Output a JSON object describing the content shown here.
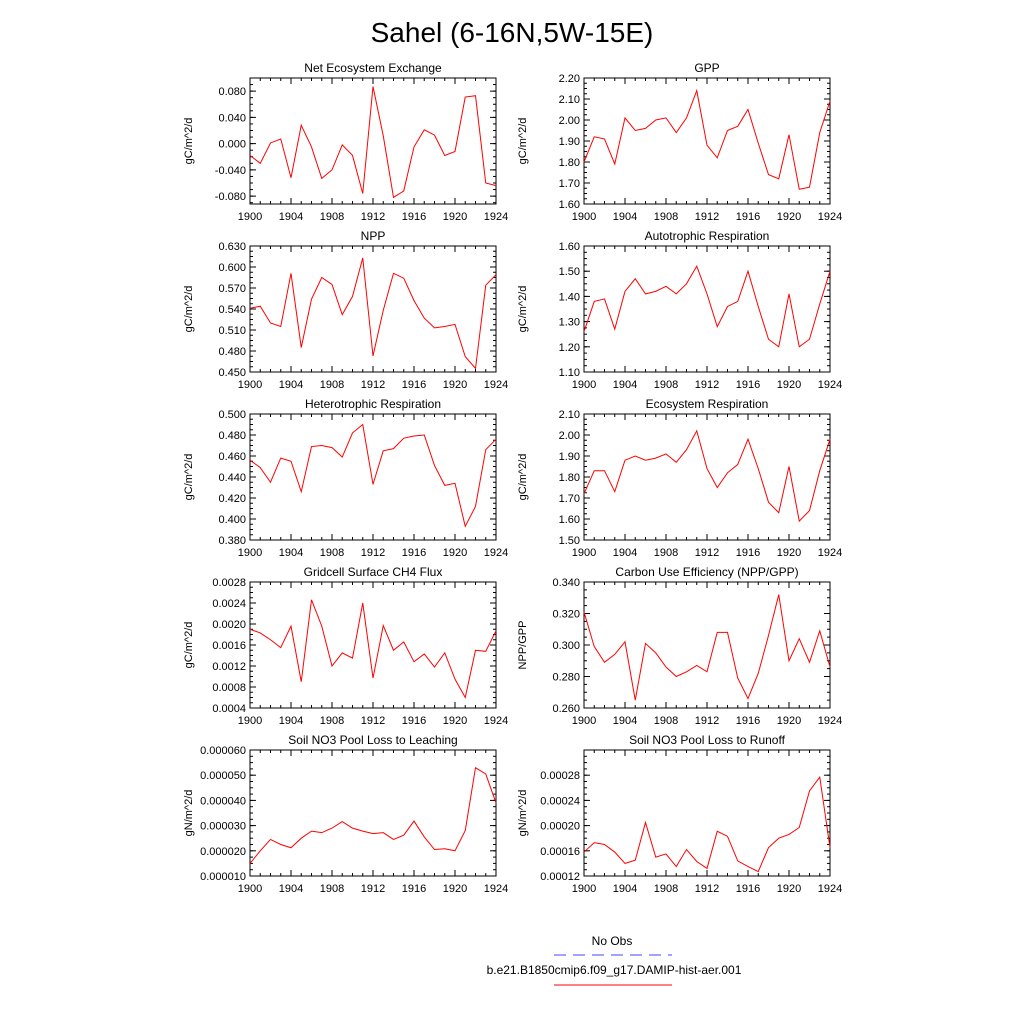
{
  "page_title": "Sahel (6-16N,5W-15E)",
  "chart_data": [
    {
      "type": "line",
      "title": "Net Ecosystem Exchange",
      "ylabel": "gC/m^2/d",
      "xlim": [
        1900,
        1924
      ],
      "ylim": [
        -0.092,
        0.1
      ],
      "xticks": [
        "1900",
        "1904",
        "1908",
        "1912",
        "1916",
        "1920",
        "1924"
      ],
      "yticks": [
        "-0.080",
        "-0.040",
        "0.000",
        "0.040",
        "0.080"
      ],
      "series": [
        {
          "color": "#ff0000",
          "x": [
            1900,
            1901,
            1902,
            1903,
            1904,
            1905,
            1906,
            1907,
            1908,
            1909,
            1910,
            1911,
            1912,
            1913,
            1914,
            1915,
            1916,
            1917,
            1918,
            1919,
            1920,
            1921,
            1922,
            1923,
            1924
          ],
          "values": [
            -0.018,
            -0.03,
            0.001,
            0.007,
            -0.052,
            0.028,
            -0.005,
            -0.053,
            -0.04,
            -0.002,
            -0.018,
            -0.076,
            0.087,
            0.012,
            -0.082,
            -0.072,
            -0.005,
            0.021,
            0.013,
            -0.018,
            -0.012,
            0.071,
            0.073,
            -0.06,
            -0.064
          ]
        }
      ]
    },
    {
      "type": "line",
      "title": "GPP",
      "ylabel": "gC/m^2/d",
      "xlim": [
        1900,
        1924
      ],
      "ylim": [
        1.6,
        2.2
      ],
      "xticks": [
        "1900",
        "1904",
        "1908",
        "1912",
        "1916",
        "1920",
        "1924"
      ],
      "yticks": [
        "1.60",
        "1.70",
        "1.80",
        "1.90",
        "2.00",
        "2.10",
        "2.20"
      ],
      "series": [
        {
          "color": "#ff0000",
          "x": [
            1900,
            1901,
            1902,
            1903,
            1904,
            1905,
            1906,
            1907,
            1908,
            1909,
            1910,
            1911,
            1912,
            1913,
            1914,
            1915,
            1916,
            1917,
            1918,
            1919,
            1920,
            1921,
            1922,
            1923,
            1924
          ],
          "values": [
            1.8,
            1.92,
            1.91,
            1.79,
            2.01,
            1.95,
            1.96,
            2.0,
            2.01,
            1.94,
            2.01,
            2.14,
            1.88,
            1.82,
            1.95,
            1.97,
            2.05,
            1.89,
            1.74,
            1.72,
            1.93,
            1.67,
            1.68,
            1.94,
            2.09
          ]
        }
      ]
    },
    {
      "type": "line",
      "title": "NPP",
      "ylabel": "gC/m^2/d",
      "xlim": [
        1900,
        1924
      ],
      "ylim": [
        0.45,
        0.63
      ],
      "xticks": [
        "1900",
        "1904",
        "1908",
        "1912",
        "1916",
        "1920",
        "1924"
      ],
      "yticks": [
        "0.450",
        "0.480",
        "0.510",
        "0.540",
        "0.570",
        "0.600",
        "0.630"
      ],
      "series": [
        {
          "color": "#ff0000",
          "x": [
            1900,
            1901,
            1902,
            1903,
            1904,
            1905,
            1906,
            1907,
            1908,
            1909,
            1910,
            1911,
            1912,
            1913,
            1914,
            1915,
            1916,
            1917,
            1918,
            1919,
            1920,
            1921,
            1922,
            1923,
            1924
          ],
          "values": [
            0.541,
            0.544,
            0.52,
            0.515,
            0.591,
            0.485,
            0.554,
            0.585,
            0.575,
            0.532,
            0.558,
            0.613,
            0.473,
            0.538,
            0.591,
            0.584,
            0.552,
            0.527,
            0.513,
            0.515,
            0.518,
            0.472,
            0.455,
            0.574,
            0.589
          ]
        }
      ]
    },
    {
      "type": "line",
      "title": "Autotrophic Respiration",
      "ylabel": "gC/m^2/d",
      "xlim": [
        1900,
        1924
      ],
      "ylim": [
        1.1,
        1.6
      ],
      "xticks": [
        "1900",
        "1904",
        "1908",
        "1912",
        "1916",
        "1920",
        "1924"
      ],
      "yticks": [
        "1.10",
        "1.20",
        "1.30",
        "1.40",
        "1.50",
        "1.60"
      ],
      "series": [
        {
          "color": "#ff0000",
          "x": [
            1900,
            1901,
            1902,
            1903,
            1904,
            1905,
            1906,
            1907,
            1908,
            1909,
            1910,
            1911,
            1912,
            1913,
            1914,
            1915,
            1916,
            1917,
            1918,
            1919,
            1920,
            1921,
            1922,
            1923,
            1924
          ],
          "values": [
            1.26,
            1.38,
            1.39,
            1.27,
            1.42,
            1.47,
            1.41,
            1.42,
            1.44,
            1.41,
            1.45,
            1.52,
            1.41,
            1.28,
            1.36,
            1.38,
            1.5,
            1.36,
            1.23,
            1.2,
            1.41,
            1.2,
            1.23,
            1.37,
            1.5
          ]
        }
      ]
    },
    {
      "type": "line",
      "title": "Heterotrophic Respiration",
      "ylabel": "gC/m^2/d",
      "xlim": [
        1900,
        1924
      ],
      "ylim": [
        0.38,
        0.5
      ],
      "xticks": [
        "1900",
        "1904",
        "1908",
        "1912",
        "1916",
        "1920",
        "1924"
      ],
      "yticks": [
        "0.380",
        "0.400",
        "0.420",
        "0.440",
        "0.460",
        "0.480",
        "0.500"
      ],
      "series": [
        {
          "color": "#ff0000",
          "x": [
            1900,
            1901,
            1902,
            1903,
            1904,
            1905,
            1906,
            1907,
            1908,
            1909,
            1910,
            1911,
            1912,
            1913,
            1914,
            1915,
            1916,
            1917,
            1918,
            1919,
            1920,
            1921,
            1922,
            1923,
            1924
          ],
          "values": [
            0.456,
            0.449,
            0.435,
            0.458,
            0.455,
            0.426,
            0.469,
            0.47,
            0.468,
            0.459,
            0.482,
            0.49,
            0.433,
            0.465,
            0.467,
            0.477,
            0.479,
            0.48,
            0.451,
            0.432,
            0.434,
            0.393,
            0.412,
            0.466,
            0.476
          ]
        }
      ]
    },
    {
      "type": "line",
      "title": "Ecosystem Respiration",
      "ylabel": "gC/m^2/d",
      "xlim": [
        1900,
        1924
      ],
      "ylim": [
        1.5,
        2.1
      ],
      "xticks": [
        "1900",
        "1904",
        "1908",
        "1912",
        "1916",
        "1920",
        "1924"
      ],
      "yticks": [
        "1.50",
        "1.60",
        "1.70",
        "1.80",
        "1.90",
        "2.00",
        "2.10"
      ],
      "series": [
        {
          "color": "#ff0000",
          "x": [
            1900,
            1901,
            1902,
            1903,
            1904,
            1905,
            1906,
            1907,
            1908,
            1909,
            1910,
            1911,
            1912,
            1913,
            1914,
            1915,
            1916,
            1917,
            1918,
            1919,
            1920,
            1921,
            1922,
            1923,
            1924
          ],
          "values": [
            1.72,
            1.83,
            1.83,
            1.73,
            1.88,
            1.9,
            1.88,
            1.89,
            1.91,
            1.87,
            1.93,
            2.02,
            1.84,
            1.75,
            1.82,
            1.86,
            1.98,
            1.84,
            1.68,
            1.63,
            1.85,
            1.59,
            1.64,
            1.83,
            1.98
          ]
        }
      ]
    },
    {
      "type": "line",
      "title": "Gridcell Surface CH4 Flux",
      "ylabel": "gC/m^2/d",
      "xlim": [
        1900,
        1924
      ],
      "ylim": [
        0.0004,
        0.0028
      ],
      "xticks": [
        "1900",
        "1904",
        "1908",
        "1912",
        "1916",
        "1920",
        "1924"
      ],
      "yticks": [
        "0.0004",
        "0.0008",
        "0.0012",
        "0.0016",
        "0.0020",
        "0.0024",
        "0.0028"
      ],
      "series": [
        {
          "color": "#ff0000",
          "x": [
            1900,
            1901,
            1902,
            1903,
            1904,
            1905,
            1906,
            1907,
            1908,
            1909,
            1910,
            1911,
            1912,
            1913,
            1914,
            1915,
            1916,
            1917,
            1918,
            1919,
            1920,
            1921,
            1922,
            1923,
            1924
          ],
          "values": [
            0.0019,
            0.00183,
            0.0017,
            0.00155,
            0.00196,
            0.0009,
            0.00246,
            0.00196,
            0.0012,
            0.00145,
            0.00135,
            0.0024,
            0.00097,
            0.00197,
            0.0015,
            0.00166,
            0.00128,
            0.00143,
            0.00118,
            0.00145,
            0.00095,
            0.0006,
            0.0015,
            0.00148,
            0.00187
          ]
        }
      ]
    },
    {
      "type": "line",
      "title": "Carbon Use Efficiency (NPP/GPP)",
      "ylabel": "NPP/GPP",
      "xlim": [
        1900,
        1924
      ],
      "ylim": [
        0.26,
        0.34
      ],
      "xticks": [
        "1900",
        "1904",
        "1908",
        "1912",
        "1916",
        "1920",
        "1924"
      ],
      "yticks": [
        "0.260",
        "0.280",
        "0.300",
        "0.320",
        "0.340"
      ],
      "series": [
        {
          "color": "#ff0000",
          "x": [
            1900,
            1901,
            1902,
            1903,
            1904,
            1905,
            1906,
            1907,
            1908,
            1909,
            1910,
            1911,
            1912,
            1913,
            1914,
            1915,
            1916,
            1917,
            1918,
            1919,
            1920,
            1921,
            1922,
            1923,
            1924
          ],
          "values": [
            0.321,
            0.299,
            0.289,
            0.294,
            0.302,
            0.265,
            0.301,
            0.295,
            0.286,
            0.28,
            0.283,
            0.287,
            0.283,
            0.308,
            0.308,
            0.279,
            0.266,
            0.282,
            0.306,
            0.332,
            0.29,
            0.304,
            0.289,
            0.309,
            0.286
          ]
        }
      ]
    },
    {
      "type": "line",
      "title": "Soil NO3 Pool Loss to Leaching",
      "ylabel": "gN/m^2/d",
      "xlim": [
        1900,
        1924
      ],
      "ylim": [
        1e-05,
        6e-05
      ],
      "xticks": [
        "1900",
        "1904",
        "1908",
        "1912",
        "1916",
        "1920",
        "1924"
      ],
      "yticks": [
        "0.000010",
        "0.000020",
        "0.000030",
        "0.000040",
        "0.000050",
        "0.000060"
      ],
      "series": [
        {
          "color": "#ff0000",
          "x": [
            1900,
            1901,
            1902,
            1903,
            1904,
            1905,
            1906,
            1907,
            1908,
            1909,
            1910,
            1911,
            1912,
            1913,
            1914,
            1915,
            1916,
            1917,
            1918,
            1919,
            1920,
            1921,
            1922,
            1923,
            1924
          ],
          "values": [
            1.5e-05,
            2e-05,
            2.45e-05,
            2.25e-05,
            2.12e-05,
            2.5e-05,
            2.78e-05,
            2.72e-05,
            2.9e-05,
            3.16e-05,
            2.9e-05,
            2.78e-05,
            2.68e-05,
            2.72e-05,
            2.45e-05,
            2.62e-05,
            3.18e-05,
            2.55e-05,
            2.05e-05,
            2.08e-05,
            2e-05,
            2.8e-05,
            5.3e-05,
            5.05e-05,
            3.9e-05
          ]
        }
      ]
    },
    {
      "type": "line",
      "title": "Soil NO3 Pool Loss to Runoff",
      "ylabel": "gN/m^2/d",
      "xlim": [
        1900,
        1924
      ],
      "ylim": [
        0.00012,
        0.00032
      ],
      "xticks": [
        "1900",
        "1904",
        "1908",
        "1912",
        "1916",
        "1920",
        "1924"
      ],
      "yticks": [
        "0.00012",
        "0.00016",
        "0.00020",
        "0.00024",
        "0.00028"
      ],
      "series": [
        {
          "color": "#ff0000",
          "x": [
            1900,
            1901,
            1902,
            1903,
            1904,
            1905,
            1906,
            1907,
            1908,
            1909,
            1910,
            1911,
            1912,
            1913,
            1914,
            1915,
            1916,
            1917,
            1918,
            1919,
            1920,
            1921,
            1922,
            1923,
            1924
          ],
          "values": [
            0.000158,
            0.000173,
            0.00017,
            0.000158,
            0.00014,
            0.000145,
            0.000205,
            0.00015,
            0.000155,
            0.000135,
            0.000162,
            0.000143,
            0.000132,
            0.000191,
            0.000183,
            0.000144,
            0.000135,
            0.000127,
            0.000165,
            0.00018,
            0.000186,
            0.000197,
            0.000255,
            0.000277,
            0.000165
          ]
        }
      ]
    }
  ],
  "legend": {
    "items": [
      {
        "label": "No Obs",
        "color": "#4444ff",
        "dash": true
      },
      {
        "label": "b.e21.B1850cmip6.f09_g17.DAMIP-hist-aer.001",
        "color": "#ff0000",
        "dash": false
      }
    ]
  }
}
